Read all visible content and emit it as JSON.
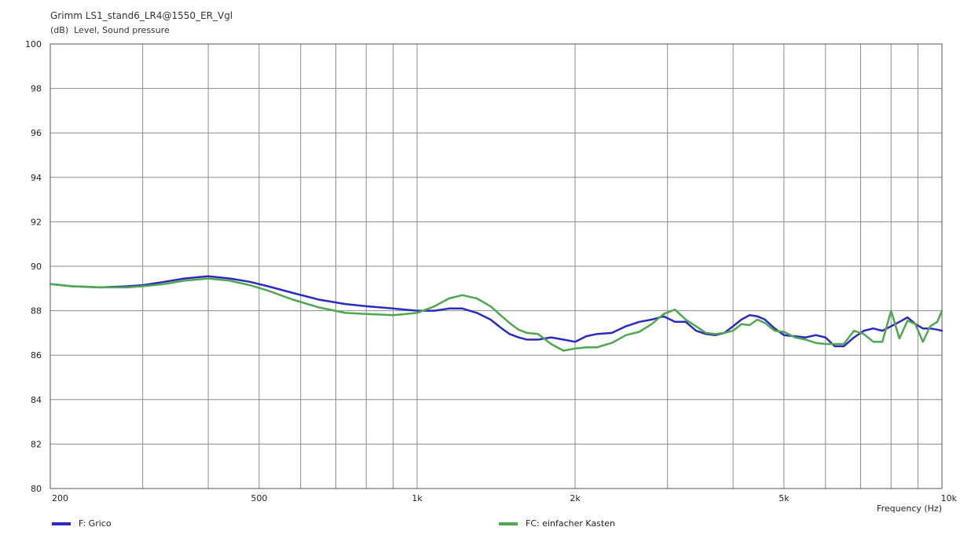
{
  "chart_data": {
    "type": "line",
    "title": "Grimm LS1_stand6_LR4@1550_ER_Vgl",
    "y_unit": "(dB)",
    "ylabel": "Level, Sound pressure",
    "xlabel": "Frequency  (Hz)",
    "x_scale": "log",
    "xlim": [
      200,
      10000
    ],
    "ylim": [
      80,
      100
    ],
    "y_ticks": [
      80,
      82,
      84,
      86,
      88,
      90,
      92,
      94,
      96,
      98,
      100
    ],
    "x_tick_labels": [
      {
        "value": 200,
        "label": "200"
      },
      {
        "value": 500,
        "label": "500"
      },
      {
        "value": 1000,
        "label": "1k"
      },
      {
        "value": 2000,
        "label": "2k"
      },
      {
        "value": 5000,
        "label": "5k"
      },
      {
        "value": 10000,
        "label": "10k"
      }
    ],
    "x_gridlines": [
      300,
      400,
      500,
      600,
      700,
      800,
      900,
      1000,
      2000,
      3000,
      4000,
      5000,
      6000,
      7000,
      8000,
      9000
    ],
    "grid": true,
    "legend_position": "bottom",
    "series": [
      {
        "name": "F: Grico",
        "color": "#2b2bbf",
        "x": [
          200,
          220,
          250,
          280,
          300,
          330,
          360,
          400,
          440,
          480,
          520,
          580,
          650,
          730,
          800,
          900,
          1000,
          1080,
          1150,
          1220,
          1300,
          1380,
          1450,
          1500,
          1560,
          1620,
          1700,
          1800,
          1900,
          2000,
          2100,
          2200,
          2350,
          2500,
          2650,
          2800,
          2950,
          3100,
          3250,
          3400,
          3550,
          3700,
          3850,
          4000,
          4150,
          4300,
          4450,
          4600,
          4800,
          5000,
          5250,
          5500,
          5750,
          6000,
          6250,
          6500,
          6800,
          7100,
          7400,
          7700,
          8000,
          8300,
          8600,
          8900,
          9200,
          9500,
          9800,
          10000
        ],
        "y": [
          89.2,
          89.1,
          89.05,
          89.1,
          89.15,
          89.3,
          89.45,
          89.55,
          89.45,
          89.3,
          89.1,
          88.8,
          88.5,
          88.3,
          88.2,
          88.1,
          88.0,
          88.0,
          88.1,
          88.1,
          87.9,
          87.6,
          87.2,
          86.95,
          86.8,
          86.7,
          86.7,
          86.8,
          86.7,
          86.6,
          86.85,
          86.95,
          87.0,
          87.3,
          87.5,
          87.6,
          87.75,
          87.5,
          87.5,
          87.1,
          86.95,
          86.9,
          87.0,
          87.3,
          87.6,
          87.8,
          87.75,
          87.6,
          87.2,
          86.9,
          86.85,
          86.8,
          86.9,
          86.8,
          86.4,
          86.4,
          86.8,
          87.1,
          87.2,
          87.1,
          87.3,
          87.5,
          87.7,
          87.4,
          87.2,
          87.2,
          87.15,
          87.1
        ]
      },
      {
        "name": "FC: einfacher Kasten",
        "color": "#4fa84f",
        "x": [
          200,
          220,
          250,
          280,
          300,
          330,
          360,
          400,
          440,
          480,
          520,
          580,
          650,
          730,
          800,
          900,
          1000,
          1080,
          1150,
          1220,
          1300,
          1380,
          1450,
          1500,
          1560,
          1620,
          1700,
          1800,
          1900,
          2000,
          2100,
          2200,
          2350,
          2500,
          2650,
          2800,
          2950,
          3100,
          3250,
          3400,
          3550,
          3700,
          3850,
          4000,
          4150,
          4300,
          4450,
          4600,
          4800,
          5000,
          5250,
          5500,
          5750,
          6000,
          6250,
          6500,
          6800,
          7100,
          7400,
          7700,
          8000,
          8300,
          8600,
          8900,
          9200,
          9500,
          9800,
          10000
        ],
        "y": [
          89.2,
          89.1,
          89.05,
          89.05,
          89.1,
          89.2,
          89.35,
          89.45,
          89.35,
          89.15,
          88.9,
          88.5,
          88.15,
          87.9,
          87.85,
          87.8,
          87.9,
          88.2,
          88.55,
          88.7,
          88.55,
          88.2,
          87.75,
          87.45,
          87.15,
          87.0,
          86.95,
          86.5,
          86.2,
          86.3,
          86.35,
          86.35,
          86.55,
          86.9,
          87.05,
          87.4,
          87.85,
          88.05,
          87.6,
          87.3,
          87.0,
          86.95,
          87.0,
          87.1,
          87.4,
          87.35,
          87.6,
          87.45,
          87.1,
          87.05,
          86.8,
          86.7,
          86.55,
          86.5,
          86.5,
          86.5,
          87.1,
          86.95,
          86.6,
          86.6,
          88.0,
          86.75,
          87.55,
          87.4,
          86.6,
          87.3,
          87.5,
          88.0
        ]
      }
    ]
  }
}
